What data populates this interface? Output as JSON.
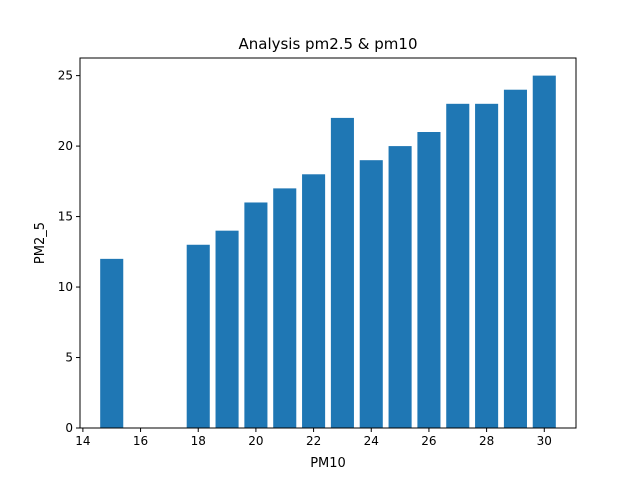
{
  "chart_data": {
    "type": "bar",
    "title": "Analysis pm2.5 & pm10",
    "xlabel": "PM10",
    "ylabel": "PM2_5",
    "x": [
      15,
      18,
      19,
      20,
      21,
      22,
      23,
      24,
      25,
      26,
      27,
      28,
      29,
      30
    ],
    "values": [
      12,
      13,
      14,
      16,
      17,
      18,
      22,
      19,
      20,
      21,
      23,
      23,
      24,
      25
    ],
    "xlim": [
      13.9,
      31.1
    ],
    "ylim": [
      0,
      26.25
    ],
    "xticks": [
      14,
      16,
      18,
      20,
      22,
      24,
      26,
      28,
      30
    ],
    "yticks": [
      0,
      5,
      10,
      15,
      20,
      25
    ],
    "bar_width": 0.8,
    "bar_color": "#1f77b4",
    "grid": false,
    "legend": false
  }
}
